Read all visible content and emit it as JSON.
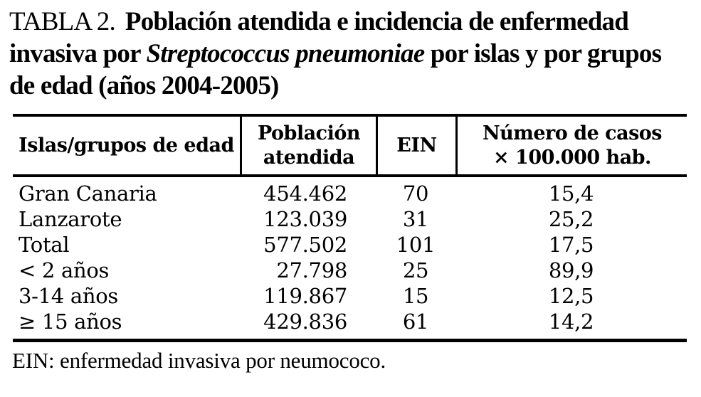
{
  "page": {
    "background": "#ffffff",
    "text_color": "#000000"
  },
  "title": {
    "label": "TABLA 2.",
    "line1_rest": "Población atendida e incidencia de enfermedad",
    "line2_pre": "invasiva por ",
    "line2_italic": "Streptococcus pneumoniae",
    "line2_post": " por islas y por grupos",
    "line3": "de edad (años 2004-2005)"
  },
  "table": {
    "columns": {
      "col1": "Islas/grupos de edad",
      "col2_line1": "Población",
      "col2_line2": "atendida",
      "col3": "EIN",
      "col4_line1": "Número de casos",
      "col4_line2": "× 100.000 hab."
    },
    "rows": [
      {
        "group": "Gran Canaria",
        "poblacion": "454.462",
        "ein": "70",
        "casos": "15,4"
      },
      {
        "group": "Lanzarote",
        "poblacion": "123.039",
        "ein": "31",
        "casos": "25,2"
      },
      {
        "group": "Total",
        "poblacion": "577.502",
        "ein": "101",
        "casos": "17,5"
      },
      {
        "group": "< 2 años",
        "poblacion": "27.798",
        "ein": "25",
        "casos": "89,9"
      },
      {
        "group": "3-14 años",
        "poblacion": "119.867",
        "ein": "15",
        "casos": "12,5"
      },
      {
        "group": "≥ 15 años",
        "poblacion": "429.836",
        "ein": "61",
        "casos": "14,2"
      }
    ],
    "footnote": "EIN: enfermedad invasiva por neumococo."
  },
  "chart_data": {
    "type": "table",
    "title": "TABLA 2. Población atendida e incidencia de enfermedad invasiva por Streptococcus pneumoniae por islas y por grupos de edad (años 2004-2005)",
    "columns": [
      "Islas/grupos de edad",
      "Población atendida",
      "EIN",
      "Número de casos × 100.000 hab."
    ],
    "rows": [
      [
        "Gran Canaria",
        454462,
        70,
        15.4
      ],
      [
        "Lanzarote",
        123039,
        31,
        25.2
      ],
      [
        "Total",
        577502,
        101,
        17.5
      ],
      [
        "< 2 años",
        27798,
        25,
        89.9
      ],
      [
        "3-14 años",
        119867,
        15,
        12.5
      ],
      [
        "≥ 15 años",
        429836,
        61,
        14.2
      ]
    ],
    "footnote": "EIN: enfermedad invasiva por neumococo."
  }
}
